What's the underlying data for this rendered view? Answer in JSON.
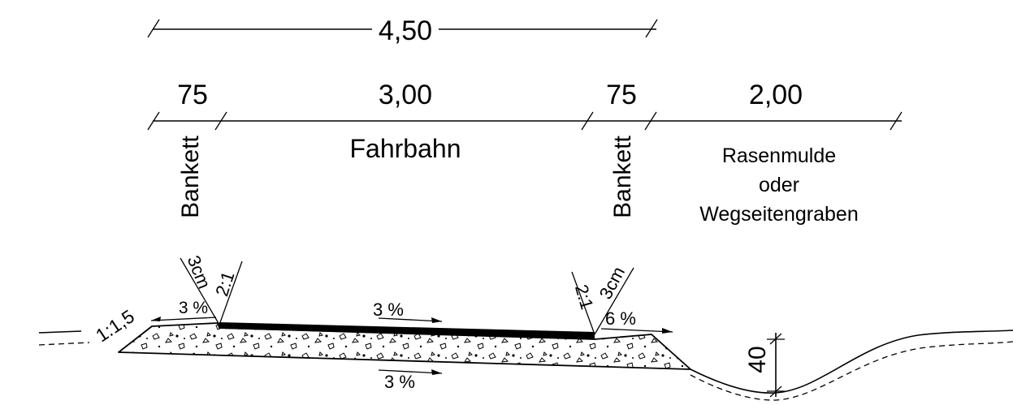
{
  "dimensions": {
    "total": "4,50",
    "bankett_left": "75",
    "fahrbahn": "3,00",
    "bankett_right": "75",
    "mulde": "2,00",
    "depth": "40"
  },
  "labels": {
    "bankett_left": "Bankett",
    "fahrbahn": "Fahrbahn",
    "bankett_right": "Bankett",
    "mulde_line1": "Rasenmulde",
    "mulde_line2": "oder",
    "mulde_line3": "Wegseitengraben"
  },
  "slopes": {
    "outer_left": "1:1,5",
    "bankett_left": "3 %",
    "fahrbahn": "3 %",
    "base": "3 %",
    "bankett_right": "6 %",
    "edge_left": "2:1",
    "edge_right": "2:1",
    "thickness_left": "3cm",
    "thickness_right": "3cm"
  }
}
